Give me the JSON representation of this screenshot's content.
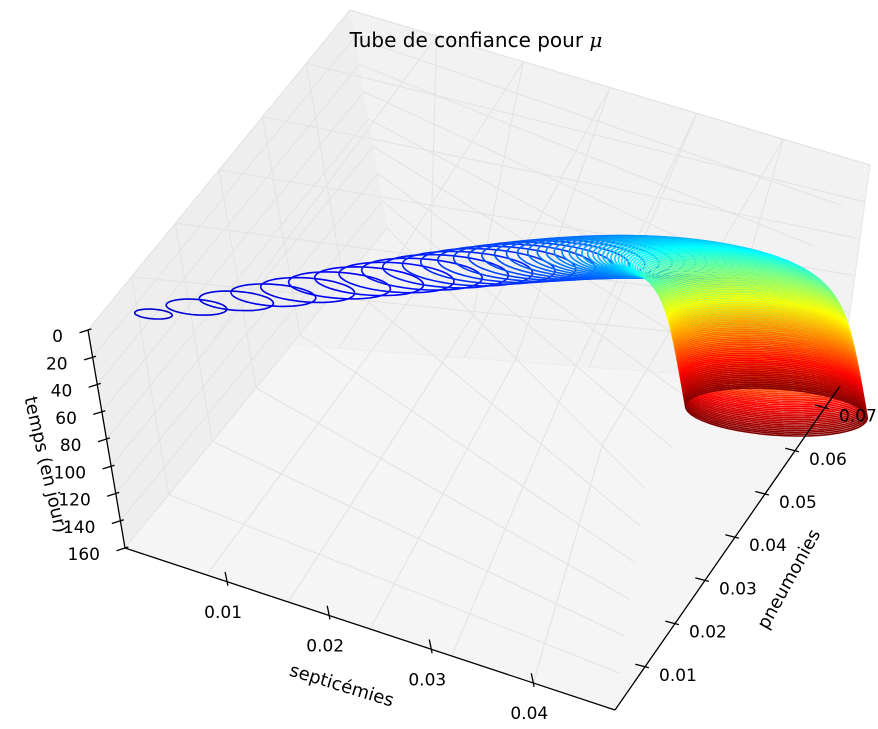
{
  "chart_data": {
    "type": "3d-line",
    "title": "Tube de confiance pour",
    "title_symbol": "μ",
    "x_axis": {
      "label": "septicémies",
      "ticks": [
        "0.01",
        "0.02",
        "0.03",
        "0.04"
      ],
      "tick_values": [
        0.01,
        0.02,
        0.03,
        0.04
      ],
      "range": [
        0.0,
        0.048
      ]
    },
    "y_axis": {
      "label": "pneumonies",
      "ticks": [
        "0.01",
        "0.02",
        "0.03",
        "0.04",
        "0.05",
        "0.06",
        "0.07"
      ],
      "tick_values": [
        0.01,
        0.02,
        0.03,
        0.04,
        0.05,
        0.06,
        0.07
      ],
      "range": [
        0.0,
        0.075
      ]
    },
    "z_axis": {
      "label": "temps (en jour)",
      "ticks": [
        "0",
        "20",
        "40",
        "60",
        "80",
        "100",
        "120",
        "140",
        "160"
      ],
      "tick_values": [
        0,
        20,
        40,
        60,
        80,
        100,
        120,
        140,
        160
      ],
      "range": [
        0,
        160
      ]
    },
    "tube": {
      "t_range": [
        0,
        160
      ],
      "center_start": [
        0.004,
        0.007
      ],
      "center_end": [
        0.04,
        0.062
      ],
      "radius_start": 0.0012,
      "radius_end": 0.0058,
      "colormap": "jet"
    },
    "grid": true
  }
}
